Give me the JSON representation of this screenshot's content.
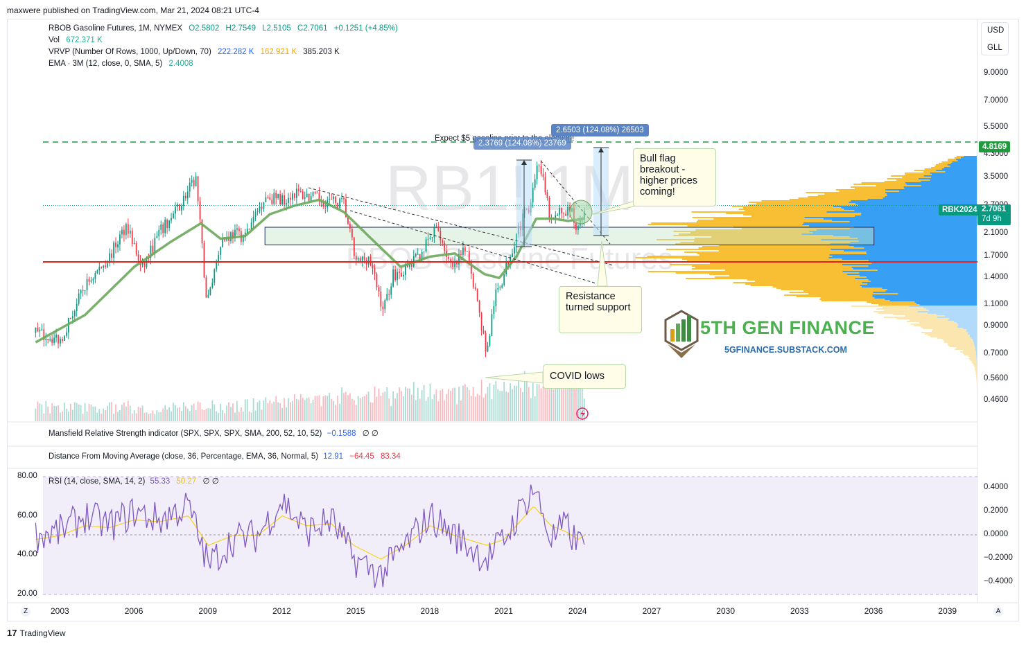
{
  "publisher": "maxwere published on TradingView.com, Mar 21, 2024 08:21 UTC-4",
  "legend": {
    "symbol": "RBOB Gasoline Futures, 1M, NYMEX",
    "open": "O2.5802",
    "high": "H2.7549",
    "low": "L2.5105",
    "close": "C2.7061",
    "change": "+0.1251 (+4.85%)",
    "vol_label": "Vol",
    "vol_value": "672.371 K",
    "vrvp_label": "VRVP (Number Of Rows, 1000, Up/Down, 70)",
    "vrvp_up": "222.282 K",
    "vrvp_down": "162.921 K",
    "vrvp_total": "385.203 K",
    "ema_label": "EMA · 3M (12, close, 0, SMA, 5)",
    "ema_value": "2.4008"
  },
  "watermark": {
    "ticker": "RB1! 1M",
    "name": "RBOB Gasoline Futures"
  },
  "currency": {
    "unit": "USD",
    "volume_unit": "GLL"
  },
  "price_axis": {
    "ticks": [
      "9.0000",
      "7.0000",
      "5.5000",
      "4.3000",
      "3.5000",
      "2.7000",
      "2.1000",
      "1.7000",
      "1.4000",
      "1.1000",
      "0.9000",
      "0.7000",
      "0.5600",
      "0.4600"
    ],
    "target_tag": "4.8169",
    "symbol_tag": "RBK2024",
    "last_price_tag": "2.7061",
    "countdown": "7d 9h"
  },
  "annotations": {
    "election": "Expect $5 gasoline prior to the election!",
    "measure_top": "2.6503 (124.08%) 26503",
    "measure_left": "2.3769 (124.08%) 23769",
    "bull_flag": "Bull flag breakout - higher prices coming!",
    "resistance": "Resistance turned support",
    "covid": "COVID lows"
  },
  "brand": {
    "name": "5TH GEN FINANCE",
    "url": "5GFINANCE.SUBSTACK.COM"
  },
  "panes": {
    "mansfield_label": "Mansfield Relative Strength indicator (SPX, SPX, SPX, SMA, 200, 52, 10, 52)",
    "mansfield_value": "−0.1588",
    "mansfield_na": "∅ ∅",
    "dma_label": "Distance From Moving Average (close, 36, Percentage, EMA, 36, Normal, 5)",
    "dma_v1": "12.91",
    "dma_v2": "−64.45",
    "dma_v3": "83.34",
    "rsi_label": "RSI (14, close, SMA, 14, 2)",
    "rsi_value": "55.33",
    "rsi_ma": "50.27",
    "rsi_na": "∅ ∅",
    "rsi_left_ticks": [
      "80.00",
      "60.00",
      "40.00",
      "20.00"
    ],
    "rsi_right_ticks": [
      "0.4000",
      "0.2000",
      "0.0000",
      "−0.2000",
      "−0.4000"
    ]
  },
  "time_axis": {
    "labels": [
      "2003",
      "2006",
      "2009",
      "2012",
      "2015",
      "2018",
      "2021",
      "2024",
      "2027",
      "2030",
      "2033",
      "2036",
      "2039"
    ],
    "left_btn": "Z",
    "right_btn": "A"
  },
  "footer": {
    "logo_text": "17",
    "brand": "TradingView"
  },
  "colors": {
    "up": "#089981",
    "down": "#f23645",
    "ema": "#6aa85a",
    "vp_up": "#2196f3",
    "vp_down": "#f7b71e",
    "support_line": "#e8201c",
    "target_line": "#1f9a3c",
    "rsi": "#7e57c2",
    "rsi_ma": "#f5d21e",
    "measure": "#5b84c4"
  },
  "chart_data": {
    "type": "candlestick",
    "title": "RBOB Gasoline Futures, 1M, NYMEX",
    "xlabel": "",
    "ylabel": "USD/GLL",
    "scale": "log",
    "x_range": [
      2002,
      2041
    ],
    "ylim": [
      0.4,
      11.5
    ],
    "grid": false,
    "close_path": {
      "x": [
        2002.0,
        2003.0,
        2004.0,
        2005.0,
        2005.7,
        2006.3,
        2007.0,
        2007.5,
        2008.5,
        2008.95,
        2009.5,
        2010.0,
        2010.5,
        2011.3,
        2012.0,
        2012.5,
        2013.5,
        2014.5,
        2015.0,
        2015.5,
        2016.1,
        2016.5,
        2017.0,
        2017.5,
        2018.3,
        2018.9,
        2019.5,
        2020.3,
        2020.6,
        2021.0,
        2021.5,
        2022.0,
        2022.4,
        2022.9,
        2023.3,
        2023.7,
        2024.0,
        2024.25
      ],
      "y": [
        0.85,
        0.8,
        1.3,
        1.7,
        2.3,
        1.5,
        2.1,
        2.4,
        3.45,
        1.1,
        1.95,
        2.1,
        2.05,
        2.95,
        2.85,
        3.05,
        2.85,
        2.75,
        1.6,
        1.7,
        1.05,
        1.45,
        1.5,
        1.7,
        2.2,
        1.5,
        1.85,
        0.7,
        1.15,
        1.45,
        2.1,
        2.7,
        4.1,
        2.3,
        2.55,
        2.6,
        2.15,
        2.71
      ]
    },
    "ema_path": {
      "x": [
        2002.0,
        2004.0,
        2006.0,
        2007.5,
        2008.7,
        2009.5,
        2010.5,
        2011.5,
        2012.5,
        2013.5,
        2014.5,
        2015.5,
        2016.8,
        2018.0,
        2019.0,
        2020.2,
        2020.8,
        2021.5,
        2022.3,
        2023.0,
        2023.6,
        2024.25
      ],
      "y": [
        0.78,
        1.0,
        1.55,
        1.95,
        2.3,
        2.0,
        2.05,
        2.5,
        2.7,
        2.85,
        2.55,
        2.05,
        1.55,
        1.7,
        1.75,
        1.45,
        1.4,
        1.7,
        2.4,
        2.4,
        2.35,
        2.4
      ]
    },
    "levels": [
      {
        "name": "target",
        "value": 4.8169
      },
      {
        "name": "support",
        "value": 1.62
      },
      {
        "name": "last",
        "value": 2.7061
      }
    ],
    "zone": {
      "x": [
        2011.3,
        2036.0
      ],
      "y": [
        1.89,
        2.22
      ]
    },
    "rsi": {
      "ylim": [
        20,
        80
      ],
      "x": [
        2002.0,
        2003.0,
        2004.0,
        2005.0,
        2006.0,
        2007.0,
        2008.2,
        2009.0,
        2010.0,
        2011.0,
        2012.0,
        2013.0,
        2014.0,
        2014.9,
        2016.0,
        2017.0,
        2018.0,
        2019.0,
        2020.3,
        2021.0,
        2022.2,
        2022.9,
        2023.5,
        2024.0,
        2024.25
      ],
      "y": [
        50,
        52,
        60,
        55,
        62,
        58,
        65,
        35,
        48,
        50,
        68,
        52,
        58,
        38,
        30,
        45,
        60,
        50,
        38,
        48,
        75,
        48,
        55,
        45,
        53
      ],
      "ma_y": [
        48,
        50,
        55,
        54,
        58,
        57,
        60,
        45,
        50,
        50,
        60,
        55,
        56,
        45,
        38,
        45,
        55,
        50,
        45,
        48,
        65,
        55,
        52,
        48,
        50
      ]
    }
  }
}
